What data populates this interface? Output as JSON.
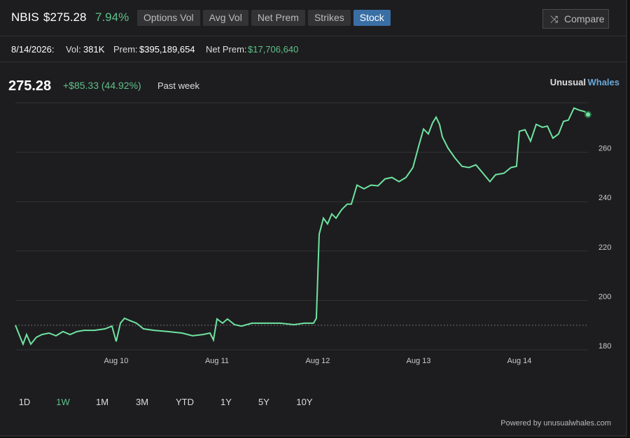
{
  "header": {
    "ticker": "NBIS",
    "price": "$275.28",
    "change": "7.94%",
    "tabs": [
      "Options Vol",
      "Avg Vol",
      "Net Prem",
      "Strikes",
      "Stock"
    ],
    "active_tab_index": 4,
    "compare": "Compare"
  },
  "stats": {
    "date": "8/14/2026:",
    "vol_label": "Vol:",
    "vol": "381K",
    "prem_label": "Prem:",
    "prem": "$395,189,654",
    "net_prem_label": "Net Prem:",
    "net_prem": "$17,706,640"
  },
  "summary": {
    "price": "275.28",
    "change": "+$85.33 (44.92%)",
    "period": "Past week"
  },
  "brand": [
    "Unusual",
    "Whales"
  ],
  "chart_data": {
    "type": "line",
    "x": [
      0,
      0.042,
      0.076,
      0.111,
      0.153,
      0.208,
      0.264,
      0.333,
      0.403,
      0.472,
      0.542,
      0.611,
      0.681,
      0.785,
      0.889,
      0.958,
      1,
      1.042,
      1.083,
      1.132,
      1.201,
      1.271,
      1.375,
      1.514,
      1.653,
      1.757,
      1.861,
      1.931,
      1.965,
      2,
      2.056,
      2.104,
      2.174,
      2.243,
      2.347,
      2.486,
      2.625,
      2.764,
      2.868,
      2.958,
      2.986,
      3.014,
      3.056,
      3.097,
      3.139,
      3.181,
      3.236,
      3.292,
      3.333,
      3.389,
      3.458,
      3.528,
      3.597,
      3.667,
      3.736,
      3.806,
      3.875,
      3.944,
      4,
      4.049,
      4.097,
      4.139,
      4.174,
      4.208,
      4.236,
      4.292,
      4.361,
      4.431,
      4.5,
      4.569,
      4.639,
      4.708,
      4.764,
      4.847,
      4.917,
      4.972,
      5,
      5.056,
      5.111,
      5.167,
      5.229,
      5.278,
      5.333,
      5.389,
      5.438,
      5.486,
      5.542,
      5.597,
      5.646,
      5.681
    ],
    "series": [
      {
        "name": "NBIS",
        "color": "#6fe3a0",
        "values": [
          190,
          185.7,
          182.3,
          186.2,
          182.3,
          185.1,
          186.2,
          186.8,
          185.7,
          187.4,
          186.2,
          187.4,
          187.9,
          187.9,
          188.5,
          189.6,
          183.4,
          190.8,
          192.8,
          191.9,
          190.8,
          188.5,
          187.9,
          187.4,
          186.8,
          185.7,
          186.2,
          186.8,
          184,
          192.5,
          190.8,
          192.5,
          190.2,
          189.6,
          190.8,
          190.8,
          190.8,
          190.2,
          190.8,
          190.8,
          192.8,
          226.8,
          233.3,
          231,
          235,
          233.3,
          236.7,
          239,
          239,
          246.7,
          245.2,
          246.7,
          246.4,
          249.2,
          249.8,
          248.1,
          249.8,
          253.8,
          262.3,
          269.4,
          267.4,
          271.9,
          274.2,
          271.3,
          266.2,
          261.7,
          257.7,
          254.3,
          253.8,
          254.9,
          251.5,
          248.1,
          250.9,
          251.5,
          253.8,
          254.3,
          268.5,
          269.1,
          264.5,
          271.3,
          270.1,
          270.6,
          265.7,
          267.4,
          272.5,
          273,
          277.9,
          277,
          276.5,
          275.28
        ]
      }
    ],
    "reference_line": 189.95,
    "xlim": [
      0,
      5.681
    ],
    "xticks": [
      {
        "value": 1,
        "label": "Aug 10"
      },
      {
        "value": 2,
        "label": "Aug 11"
      },
      {
        "value": 3,
        "label": "Aug 12"
      },
      {
        "value": 4,
        "label": "Aug 13"
      },
      {
        "value": 5,
        "label": "Aug 14"
      }
    ],
    "ylim": [
      180,
      280
    ],
    "yticks": [
      180,
      200,
      220,
      240,
      260
    ],
    "grid": true
  },
  "ranges": [
    "1D",
    "1W",
    "1M",
    "3M",
    "YTD",
    "1Y",
    "5Y",
    "10Y"
  ],
  "active_range_index": 1,
  "footer": "Powered by unusualwhales.com"
}
